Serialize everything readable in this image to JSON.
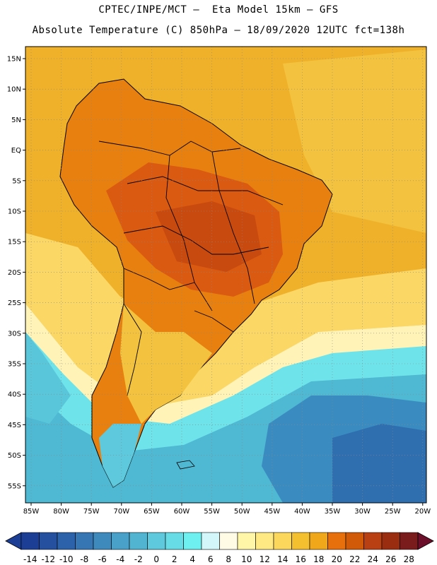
{
  "title": {
    "line1": "CPTEC/INPE/MCT –  Eta Model 15km – GFS",
    "line2": "Absolute Temperature (C) 850hPa – 18/09/2020 12UTC fct=138h"
  },
  "axes": {
    "lat_labels": [
      "15N",
      "10N",
      "5N",
      "EQ",
      "5S",
      "10S",
      "15S",
      "20S",
      "25S",
      "30S",
      "35S",
      "40S",
      "45S",
      "50S",
      "55S"
    ],
    "lon_labels": [
      "85W",
      "80W",
      "75W",
      "70W",
      "65W",
      "60W",
      "55W",
      "50W",
      "45W",
      "40W",
      "35W",
      "30W",
      "25W",
      "20W"
    ]
  },
  "colorbar": {
    "labels": [
      "-14",
      "-12",
      "-10",
      "-8",
      "-6",
      "-4",
      "-2",
      "0",
      "2",
      "4",
      "6",
      "8",
      "10",
      "12",
      "14",
      "16",
      "18",
      "20",
      "22",
      "24",
      "26",
      "28"
    ],
    "colors": [
      "#1c3f95",
      "#24509f",
      "#2c62a9",
      "#3576b3",
      "#3f8abd",
      "#49a0c8",
      "#51b4d1",
      "#5ec8dc",
      "#67dbe6",
      "#6ff0f0",
      "#d2f6fa",
      "#fffbe4",
      "#fff6a8",
      "#fee983",
      "#fbd85c",
      "#f5c030",
      "#f0a81a",
      "#e8700c",
      "#d05a08",
      "#b84012",
      "#9a2d10",
      "#7a1c1c",
      "#6b0f2a"
    ]
  },
  "colors": {
    "ocean_warm": "#f0b12a",
    "ocean_mid": "#fbd866",
    "ocean_pale": "#fff3b8",
    "ocean_cold": "#4fb8d2",
    "ocean_deep": "#2f6fb0",
    "land_hot": "#d95a10",
    "land_warm": "#e8800f"
  }
}
